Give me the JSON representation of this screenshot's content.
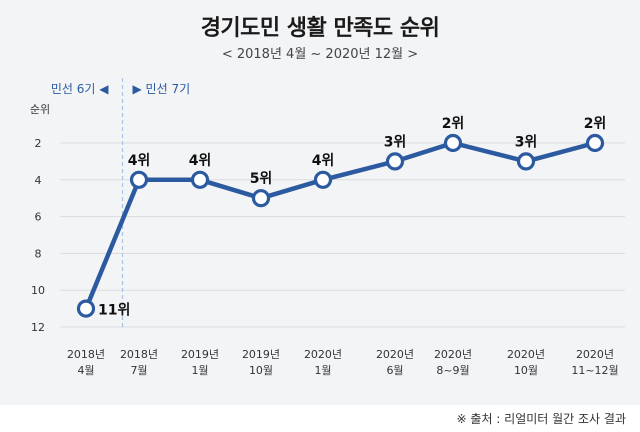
{
  "title": "경기도민 생활 만족도 순위",
  "subtitle": "< 2018년  4월 ~ 2020년  12월 >",
  "source": "※ 출처 : 리얼미터 월간 조사 결과",
  "colors": {
    "line": "#2c5aa0",
    "marker_fill": "#ffffff",
    "background": "#f3f4f6",
    "grid": "#d9dbe0",
    "divider": "#a9c3e0"
  },
  "chart_data": {
    "type": "line",
    "ylabel": "순위",
    "y_inverted": true,
    "ylim": [
      1,
      12
    ],
    "yticks": [
      2,
      4,
      6,
      8,
      10,
      12
    ],
    "grid": "horizontal",
    "categories": [
      [
        "2018년",
        "4월"
      ],
      [
        "2018년",
        "7월"
      ],
      [
        "2019년",
        "1월"
      ],
      [
        "2019년",
        "10월"
      ],
      [
        "2020년",
        "1월"
      ],
      [
        "2020년",
        "6월"
      ],
      [
        "2020년",
        "8~9월"
      ],
      [
        "2020년",
        "10월"
      ],
      [
        "2020년",
        "11~12월"
      ]
    ],
    "values": [
      11,
      4,
      4,
      5,
      4,
      3,
      2,
      3,
      2
    ],
    "data_labels": [
      "11위",
      "4위",
      "4위",
      "5위",
      "4위",
      "3위",
      "2위",
      "3위",
      "2위"
    ],
    "term_divider": {
      "between_index": [
        0,
        1
      ],
      "left_label": "민선 6기 ◀",
      "right_label": "▶ 민선 7기"
    }
  }
}
